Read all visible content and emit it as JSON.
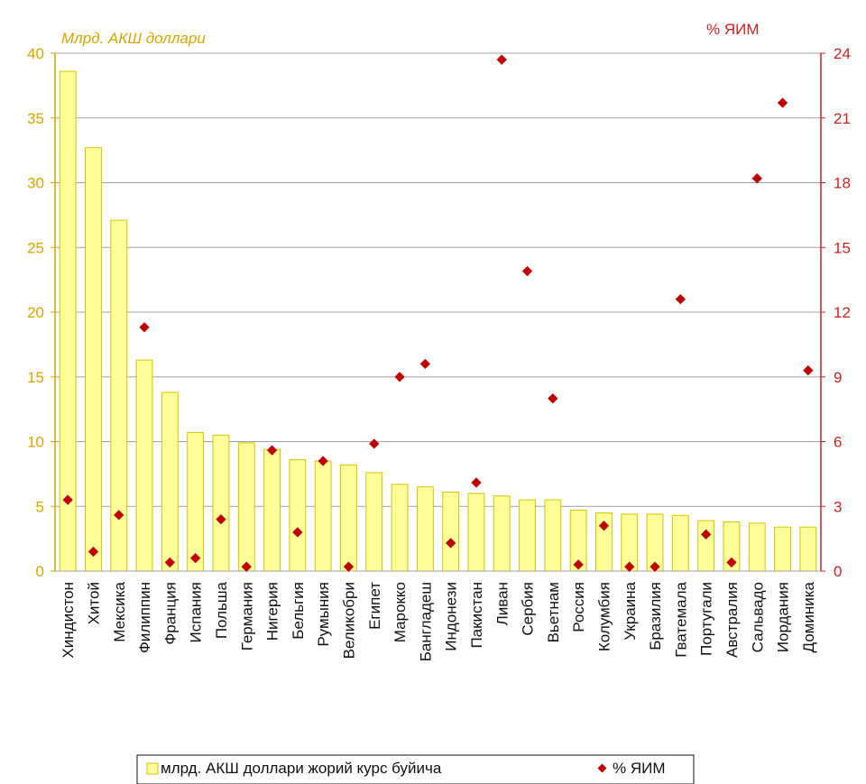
{
  "chart_data": {
    "type": "bar",
    "y_left_label": "Млрд. АКШ доллари",
    "y_right_label": "% ЯИМ",
    "ylim_left": [
      0,
      40
    ],
    "ylim_right": [
      0,
      24
    ],
    "yticks_left": [
      "0",
      "5",
      "10",
      "15",
      "20",
      "25",
      "30",
      "35",
      "40"
    ],
    "yticks_right": [
      "0",
      "3",
      "6",
      "9",
      "12",
      "15",
      "18",
      "21",
      "24"
    ],
    "grid": true,
    "legend_position": "bottom",
    "categories": [
      "Хиндистон",
      "Хитой",
      "Мексика",
      "Филиппин",
      "Франция",
      "Испания",
      "Польша",
      "Германия",
      "Нигерия",
      "Бельгия",
      "Румыния",
      "Великобри",
      "Египет",
      "Марокко",
      "Бангладеш",
      "Индонези",
      "Пакистан",
      "Ливан",
      "Сербия",
      "Вьетнам",
      "Россия",
      "Колумбия",
      "Украина",
      "Бразилия",
      "Гватемала",
      "Португали",
      "Австралия",
      "Сальвадо",
      "Иордания",
      "Доминика"
    ],
    "series": [
      {
        "name": "млрд. АКШ доллари  жорий курс буйича",
        "type": "bar",
        "axis": "left",
        "color": "#ffff99",
        "values": [
          38.6,
          32.7,
          27.1,
          16.3,
          13.8,
          10.7,
          10.5,
          9.9,
          9.4,
          8.6,
          8.5,
          8.2,
          7.6,
          6.7,
          6.5,
          6.1,
          6.0,
          5.8,
          5.5,
          5.5,
          4.7,
          4.5,
          4.4,
          4.4,
          4.3,
          3.9,
          3.8,
          3.7,
          3.4,
          3.4
        ]
      },
      {
        "name": "% ЯИМ",
        "type": "scatter",
        "axis": "right",
        "color": "#c00000",
        "values": [
          3.3,
          0.9,
          2.6,
          11.3,
          0.4,
          0.6,
          2.4,
          0.2,
          5.6,
          1.8,
          5.1,
          0.2,
          5.9,
          9.0,
          9.6,
          1.3,
          4.1,
          23.7,
          13.9,
          8.0,
          0.3,
          2.1,
          0.2,
          0.2,
          12.6,
          1.7,
          0.4,
          18.2,
          21.7,
          9.3
        ]
      }
    ]
  }
}
